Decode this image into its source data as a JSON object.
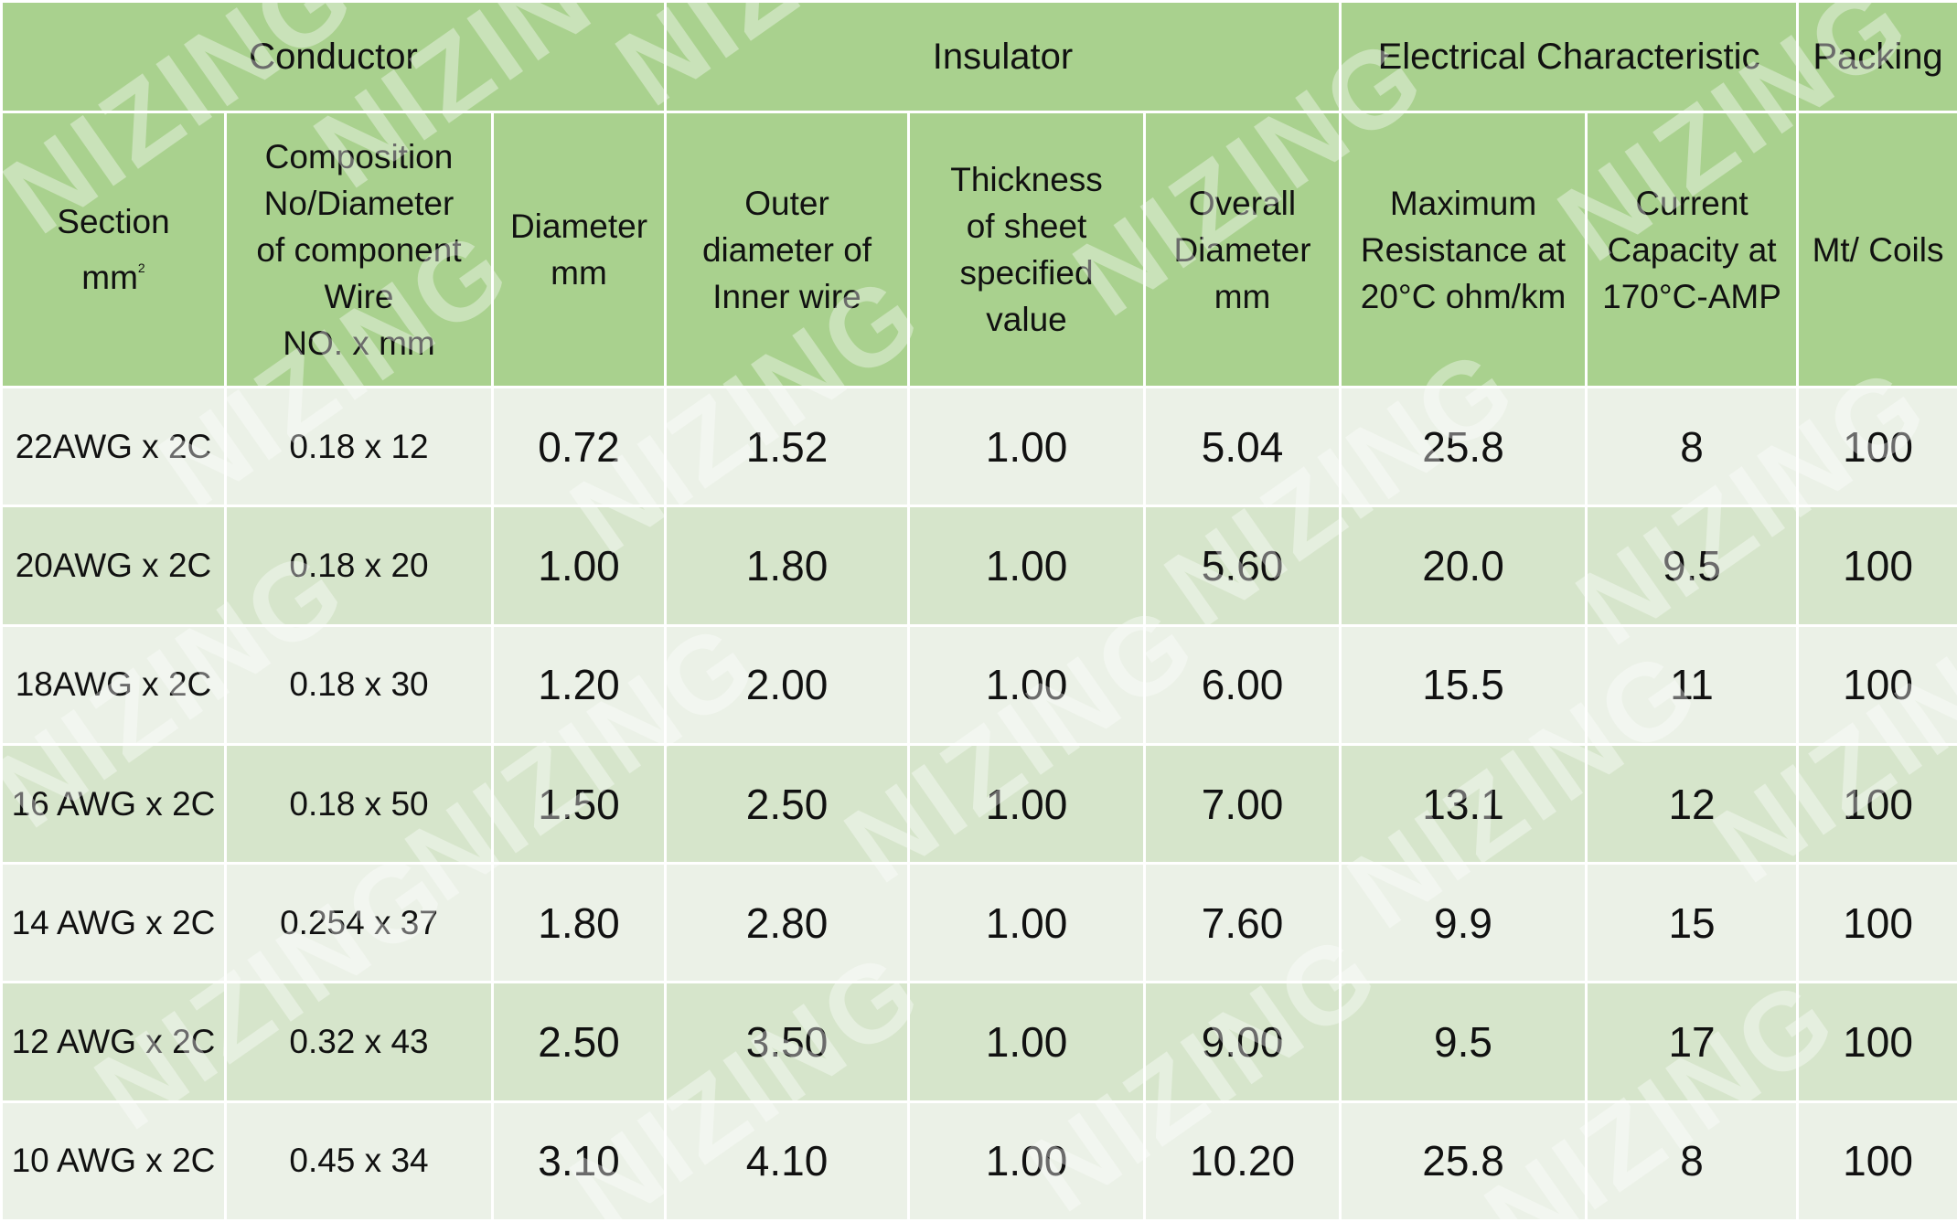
{
  "watermark": "NIZING",
  "groups": [
    {
      "label": "Conductor"
    },
    {
      "label": "Insulator"
    },
    {
      "label": "Electrical Characteristic"
    },
    {
      "label": "Packing"
    }
  ],
  "subheaders": [
    {
      "lines": [
        "Section",
        "mm"
      ],
      "sup": "2"
    },
    {
      "lines": [
        "Composition",
        "No/Diameter",
        "of component",
        "Wire",
        "NO. x mm"
      ]
    },
    {
      "lines": [
        "Diameter",
        "mm"
      ]
    },
    {
      "lines": [
        "Outer",
        "diameter of",
        "Inner wire"
      ]
    },
    {
      "lines": [
        "Thickness",
        "of sheet",
        "specified",
        "value"
      ]
    },
    {
      "lines": [
        "Overall",
        "Diameter",
        "mm"
      ]
    },
    {
      "lines": [
        "Maximum",
        "Resistance at",
        "20°C ohm/km"
      ]
    },
    {
      "lines": [
        "Current",
        "Capacity at",
        "170°C-AMP"
      ]
    },
    {
      "lines": [
        "Mt/ Coils"
      ]
    }
  ],
  "rows": [
    [
      "22AWG x 2C",
      "0.18 x 12",
      "0.72",
      "1.52",
      "1.00",
      "5.04",
      "25.8",
      "8",
      "100"
    ],
    [
      "20AWG x 2C",
      "0.18 x 20",
      "1.00",
      "1.80",
      "1.00",
      "5.60",
      "20.0",
      "9.5",
      "100"
    ],
    [
      "18AWG x 2C",
      "0.18 x 30",
      "1.20",
      "2.00",
      "1.00",
      "6.00",
      "15.5",
      "11",
      "100"
    ],
    [
      "16 AWG x 2C",
      "0.18 x 50",
      "1.50",
      "2.50",
      "1.00",
      "7.00",
      "13.1",
      "12",
      "100"
    ],
    [
      "14 AWG x 2C",
      "0.254 x 37",
      "1.80",
      "2.80",
      "1.00",
      "7.60",
      "9.9",
      "15",
      "100"
    ],
    [
      "12 AWG x 2C",
      "0.32 x 43",
      "2.50",
      "3.50",
      "1.00",
      "9.00",
      "9.5",
      "17",
      "100"
    ],
    [
      "10 AWG x 2C",
      "0.45 x 34",
      "3.10",
      "4.10",
      "1.00",
      "10.20",
      "25.8",
      "8",
      "100"
    ]
  ],
  "colors": {
    "header_bg": "#a9d18e",
    "row_light": "#ebf1e7",
    "row_dark": "#d6e5cb",
    "grid_line": "#ffffff"
  }
}
